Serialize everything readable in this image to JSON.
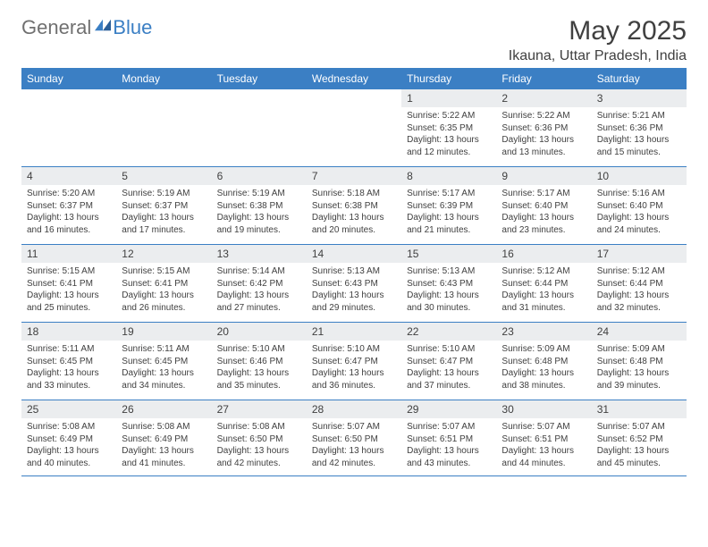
{
  "logo": {
    "part1": "General",
    "part2": "Blue"
  },
  "title": "May 2025",
  "location": "Ikauna, Uttar Pradesh, India",
  "colors": {
    "header_bg": "#3b7fc4",
    "header_text": "#ffffff",
    "daynum_bg": "#ebedef",
    "border": "#3b7fc4",
    "body_text": "#404040",
    "logo_gray": "#707070",
    "logo_blue": "#3b7fc4"
  },
  "weekdays": [
    "Sunday",
    "Monday",
    "Tuesday",
    "Wednesday",
    "Thursday",
    "Friday",
    "Saturday"
  ],
  "weeks": [
    [
      null,
      null,
      null,
      null,
      {
        "n": "1",
        "sr": "5:22 AM",
        "ss": "6:35 PM",
        "dl": "13 hours and 12 minutes."
      },
      {
        "n": "2",
        "sr": "5:22 AM",
        "ss": "6:36 PM",
        "dl": "13 hours and 13 minutes."
      },
      {
        "n": "3",
        "sr": "5:21 AM",
        "ss": "6:36 PM",
        "dl": "13 hours and 15 minutes."
      }
    ],
    [
      {
        "n": "4",
        "sr": "5:20 AM",
        "ss": "6:37 PM",
        "dl": "13 hours and 16 minutes."
      },
      {
        "n": "5",
        "sr": "5:19 AM",
        "ss": "6:37 PM",
        "dl": "13 hours and 17 minutes."
      },
      {
        "n": "6",
        "sr": "5:19 AM",
        "ss": "6:38 PM",
        "dl": "13 hours and 19 minutes."
      },
      {
        "n": "7",
        "sr": "5:18 AM",
        "ss": "6:38 PM",
        "dl": "13 hours and 20 minutes."
      },
      {
        "n": "8",
        "sr": "5:17 AM",
        "ss": "6:39 PM",
        "dl": "13 hours and 21 minutes."
      },
      {
        "n": "9",
        "sr": "5:17 AM",
        "ss": "6:40 PM",
        "dl": "13 hours and 23 minutes."
      },
      {
        "n": "10",
        "sr": "5:16 AM",
        "ss": "6:40 PM",
        "dl": "13 hours and 24 minutes."
      }
    ],
    [
      {
        "n": "11",
        "sr": "5:15 AM",
        "ss": "6:41 PM",
        "dl": "13 hours and 25 minutes."
      },
      {
        "n": "12",
        "sr": "5:15 AM",
        "ss": "6:41 PM",
        "dl": "13 hours and 26 minutes."
      },
      {
        "n": "13",
        "sr": "5:14 AM",
        "ss": "6:42 PM",
        "dl": "13 hours and 27 minutes."
      },
      {
        "n": "14",
        "sr": "5:13 AM",
        "ss": "6:43 PM",
        "dl": "13 hours and 29 minutes."
      },
      {
        "n": "15",
        "sr": "5:13 AM",
        "ss": "6:43 PM",
        "dl": "13 hours and 30 minutes."
      },
      {
        "n": "16",
        "sr": "5:12 AM",
        "ss": "6:44 PM",
        "dl": "13 hours and 31 minutes."
      },
      {
        "n": "17",
        "sr": "5:12 AM",
        "ss": "6:44 PM",
        "dl": "13 hours and 32 minutes."
      }
    ],
    [
      {
        "n": "18",
        "sr": "5:11 AM",
        "ss": "6:45 PM",
        "dl": "13 hours and 33 minutes."
      },
      {
        "n": "19",
        "sr": "5:11 AM",
        "ss": "6:45 PM",
        "dl": "13 hours and 34 minutes."
      },
      {
        "n": "20",
        "sr": "5:10 AM",
        "ss": "6:46 PM",
        "dl": "13 hours and 35 minutes."
      },
      {
        "n": "21",
        "sr": "5:10 AM",
        "ss": "6:47 PM",
        "dl": "13 hours and 36 minutes."
      },
      {
        "n": "22",
        "sr": "5:10 AM",
        "ss": "6:47 PM",
        "dl": "13 hours and 37 minutes."
      },
      {
        "n": "23",
        "sr": "5:09 AM",
        "ss": "6:48 PM",
        "dl": "13 hours and 38 minutes."
      },
      {
        "n": "24",
        "sr": "5:09 AM",
        "ss": "6:48 PM",
        "dl": "13 hours and 39 minutes."
      }
    ],
    [
      {
        "n": "25",
        "sr": "5:08 AM",
        "ss": "6:49 PM",
        "dl": "13 hours and 40 minutes."
      },
      {
        "n": "26",
        "sr": "5:08 AM",
        "ss": "6:49 PM",
        "dl": "13 hours and 41 minutes."
      },
      {
        "n": "27",
        "sr": "5:08 AM",
        "ss": "6:50 PM",
        "dl": "13 hours and 42 minutes."
      },
      {
        "n": "28",
        "sr": "5:07 AM",
        "ss": "6:50 PM",
        "dl": "13 hours and 42 minutes."
      },
      {
        "n": "29",
        "sr": "5:07 AM",
        "ss": "6:51 PM",
        "dl": "13 hours and 43 minutes."
      },
      {
        "n": "30",
        "sr": "5:07 AM",
        "ss": "6:51 PM",
        "dl": "13 hours and 44 minutes."
      },
      {
        "n": "31",
        "sr": "5:07 AM",
        "ss": "6:52 PM",
        "dl": "13 hours and 45 minutes."
      }
    ]
  ],
  "labels": {
    "sunrise": "Sunrise:",
    "sunset": "Sunset:",
    "daylight": "Daylight:"
  }
}
